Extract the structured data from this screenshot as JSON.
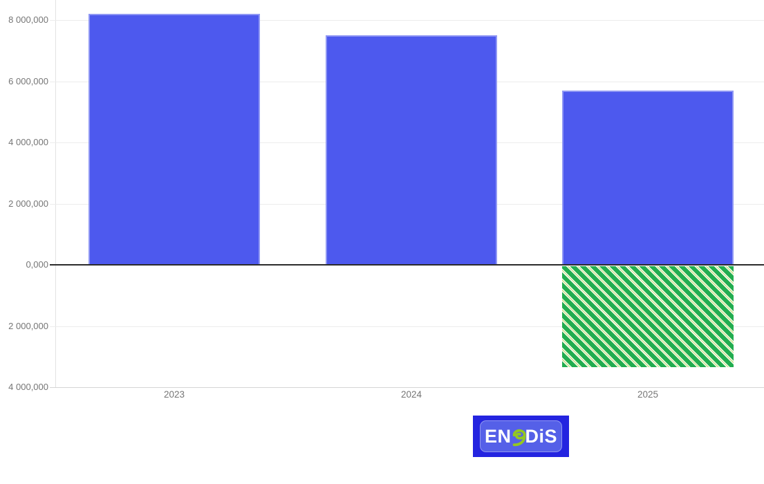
{
  "chart_data": {
    "type": "bar",
    "title": "",
    "categories": [
      "2023",
      "2024",
      "2025"
    ],
    "series": [
      {
        "name": "bars-positive",
        "color": "#4d59ee",
        "values": [
          8200000,
          7500000,
          5700000
        ]
      },
      {
        "name": "bars-negative-hatched",
        "color": "#22ad4f",
        "stripe_color": "#cde592",
        "stripe_edge_color": "#ffffff",
        "hatched": true,
        "values": [
          null,
          null,
          -3350000
        ]
      }
    ],
    "y_ticks": [
      {
        "value": 8000000,
        "label": "8 000,000"
      },
      {
        "value": 6000000,
        "label": "6 000,000"
      },
      {
        "value": 4000000,
        "label": "4 000,000"
      },
      {
        "value": 2000000,
        "label": "2 000,000"
      },
      {
        "value": 0,
        "label": "0,000"
      },
      {
        "value": -2000000,
        "label": "2 000,000"
      },
      {
        "value": -4000000,
        "label": "4 000,000"
      }
    ],
    "ylim": [
      -4000000,
      8660000
    ],
    "xlabel": "",
    "ylabel": "",
    "grid": true,
    "legend_position": "none"
  },
  "logo": {
    "part_en": "EN",
    "part_dis": "DiS",
    "outer_color": "#2424e0",
    "inner_color": "#5560e8",
    "text_color": "#ffffff",
    "e_color": "#94c721"
  },
  "colors": {
    "background": "#ffffff",
    "gridline": "#ececec",
    "axis_line": "#e2e2e2",
    "bottom_axis_line": "#d4d4d4",
    "zero_line": "#2b2b2b",
    "tick_label": "#757575"
  }
}
